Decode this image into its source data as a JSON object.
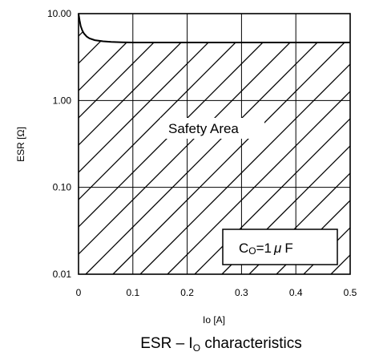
{
  "chart_data": {
    "type": "line",
    "title_main": "ESR – I",
    "title_sub": "O",
    "title_tail": " characteristics",
    "xlabel": "Io [A]",
    "ylabel": "ESR [Ω]",
    "xlim": [
      0,
      0.5
    ],
    "ylim": [
      0.01,
      10
    ],
    "yscale": "log",
    "xticks": [
      "0",
      "0.1",
      "0.2",
      "0.3",
      "0.4",
      "0.5"
    ],
    "yticks": [
      "0.01",
      "0.10",
      "1.00",
      "10.00"
    ],
    "grid": true,
    "area_label": "Safety Area",
    "legend": {
      "c": "C",
      "sub": "O",
      "value": "=1",
      "mu": "μ",
      "unit": "F",
      "placement": "bottom-right"
    },
    "series": [
      {
        "x": [
          0.0,
          0.002,
          0.004,
          0.007,
          0.01,
          0.015,
          0.02,
          0.03,
          0.045,
          0.06,
          0.08,
          0.1,
          0.2,
          0.3,
          0.4,
          0.5
        ],
        "y": [
          10,
          8.3,
          7.2,
          6.4,
          5.9,
          5.45,
          5.2,
          4.95,
          4.8,
          4.72,
          4.68,
          4.65,
          4.65,
          4.65,
          4.65,
          4.65
        ]
      }
    ],
    "hatch": "diagonal lines below the boundary curve (safe region)"
  },
  "colors": {
    "line": "#000000",
    "background": "#ffffff"
  }
}
